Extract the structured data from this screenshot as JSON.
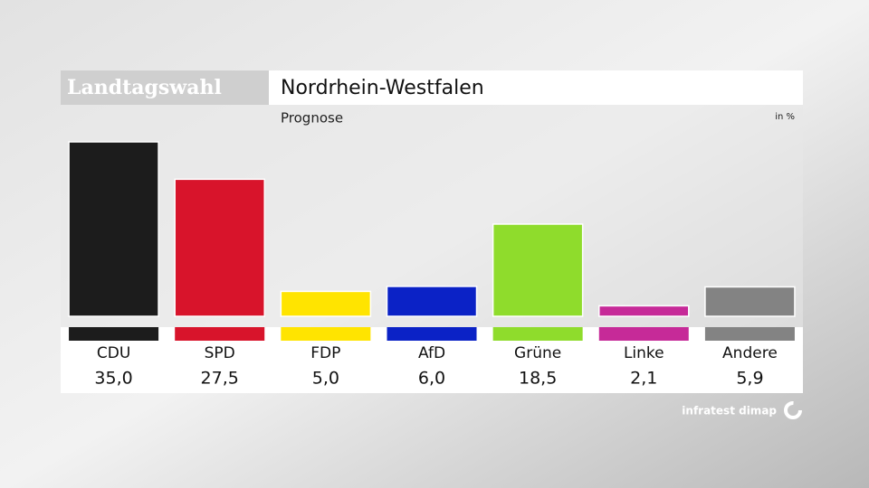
{
  "chart_data": {
    "type": "bar",
    "label": "Landtagswahl",
    "title": "Nordrhein-Westfalen",
    "subtitle": "Prognose",
    "unit": "in %",
    "source": "infratest dimap",
    "categories": [
      "CDU",
      "SPD",
      "FDP",
      "AfD",
      "Grüne",
      "Linke",
      "Andere"
    ],
    "values": [
      35.0,
      27.5,
      5.0,
      6.0,
      18.5,
      2.1,
      5.9
    ],
    "value_labels": [
      "35,0",
      "27,5",
      "5,0",
      "6,0",
      "18,5",
      "2,1",
      "5,9"
    ],
    "colors": [
      "#1c1c1c",
      "#d8142b",
      "#ffe400",
      "#0b22c6",
      "#8fdc2c",
      "#c62a98",
      "#838383"
    ]
  }
}
